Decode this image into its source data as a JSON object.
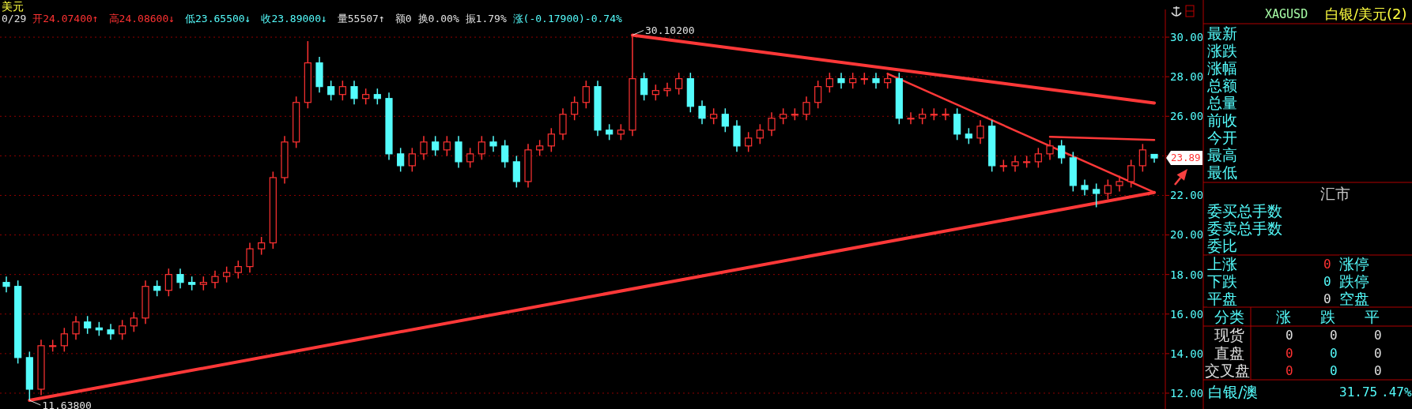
{
  "chart_data": [
    {
      "type": "candlestick",
      "title": "美元",
      "categories": [
        null,
        null,
        null,
        null,
        null,
        null,
        null,
        null,
        null,
        null,
        null,
        null,
        null,
        null,
        null,
        null,
        null,
        null,
        null,
        null,
        null,
        null,
        null,
        null,
        null,
        null,
        null,
        null,
        null,
        null,
        null,
        null,
        null,
        null,
        null,
        null,
        null,
        null,
        null,
        null,
        null,
        null,
        null,
        null,
        null,
        null,
        null,
        null,
        null,
        null,
        null,
        null,
        null,
        null,
        null,
        null,
        null,
        null,
        null,
        null,
        null,
        null,
        null,
        null,
        null,
        null,
        null,
        null,
        null,
        null,
        null,
        null,
        null,
        null,
        null,
        null,
        null,
        null,
        null,
        null,
        null,
        null,
        null,
        null,
        null,
        null,
        null,
        null,
        null,
        null,
        null,
        null,
        null,
        null,
        null,
        null,
        null,
        null,
        null,
        null
      ],
      "ohlc": [
        [
          17.6,
          17.9,
          17.1,
          17.4
        ],
        [
          17.4,
          17.7,
          13.5,
          13.8
        ],
        [
          13.8,
          14.1,
          11.638,
          12.2
        ],
        [
          12.2,
          14.7,
          11.9,
          14.4
        ],
        [
          14.4,
          14.7,
          14.1,
          14.4
        ],
        [
          14.4,
          15.3,
          14.1,
          15.0
        ],
        [
          15.0,
          15.9,
          14.7,
          15.6
        ],
        [
          15.6,
          15.9,
          15.0,
          15.3
        ],
        [
          15.3,
          15.6,
          14.9,
          15.2
        ],
        [
          15.2,
          15.5,
          14.7,
          15.0
        ],
        [
          15.0,
          15.7,
          14.7,
          15.4
        ],
        [
          15.4,
          16.1,
          15.1,
          15.8
        ],
        [
          15.8,
          17.7,
          15.5,
          17.4
        ],
        [
          17.4,
          17.7,
          16.9,
          17.2
        ],
        [
          17.2,
          18.3,
          16.9,
          18.0
        ],
        [
          18.0,
          18.3,
          17.3,
          17.6
        ],
        [
          17.6,
          17.9,
          17.2,
          17.5
        ],
        [
          17.5,
          17.9,
          17.2,
          17.6
        ],
        [
          17.6,
          18.2,
          17.3,
          17.9
        ],
        [
          17.9,
          18.4,
          17.6,
          18.1
        ],
        [
          18.1,
          18.7,
          17.8,
          18.4
        ],
        [
          18.4,
          19.6,
          18.1,
          19.3
        ],
        [
          19.3,
          19.9,
          19.0,
          19.6
        ],
        [
          19.6,
          23.2,
          19.3,
          22.9
        ],
        [
          22.9,
          25.0,
          22.6,
          24.7
        ],
        [
          24.7,
          27.0,
          24.4,
          26.7
        ],
        [
          26.7,
          29.8,
          26.4,
          28.7
        ],
        [
          28.7,
          29.0,
          27.2,
          27.5
        ],
        [
          27.5,
          27.8,
          26.8,
          27.1
        ],
        [
          27.1,
          27.8,
          26.8,
          27.5
        ],
        [
          27.5,
          27.8,
          26.6,
          26.9
        ],
        [
          26.9,
          27.4,
          26.6,
          27.1
        ],
        [
          27.1,
          27.4,
          26.6,
          26.9
        ],
        [
          26.9,
          27.2,
          23.8,
          24.1
        ],
        [
          24.1,
          24.4,
          23.2,
          23.5
        ],
        [
          23.5,
          24.4,
          23.2,
          24.1
        ],
        [
          24.1,
          25.0,
          23.8,
          24.7
        ],
        [
          24.7,
          25.0,
          24.0,
          24.3
        ],
        [
          24.3,
          25.0,
          24.0,
          24.7
        ],
        [
          24.7,
          25.0,
          23.4,
          23.7
        ],
        [
          23.7,
          24.4,
          23.4,
          24.1
        ],
        [
          24.1,
          25.0,
          23.8,
          24.7
        ],
        [
          24.7,
          25.0,
          24.2,
          24.5
        ],
        [
          24.5,
          24.8,
          23.4,
          23.7
        ],
        [
          23.7,
          24.0,
          22.4,
          22.7
        ],
        [
          22.7,
          24.6,
          22.4,
          24.3
        ],
        [
          24.3,
          24.8,
          24.0,
          24.5
        ],
        [
          24.5,
          25.4,
          24.2,
          25.1
        ],
        [
          25.1,
          26.4,
          24.8,
          26.1
        ],
        [
          26.1,
          27.0,
          25.8,
          26.7
        ],
        [
          26.7,
          27.8,
          26.4,
          27.5
        ],
        [
          27.5,
          27.8,
          25.0,
          25.3
        ],
        [
          25.3,
          25.6,
          24.8,
          25.1
        ],
        [
          25.1,
          25.6,
          24.8,
          25.3
        ],
        [
          25.3,
          30.102,
          25.0,
          27.9
        ],
        [
          27.9,
          28.2,
          26.8,
          27.1
        ],
        [
          27.1,
          27.6,
          26.8,
          27.3
        ],
        [
          27.3,
          27.7,
          27.0,
          27.4
        ],
        [
          27.4,
          28.2,
          27.1,
          27.9
        ],
        [
          27.9,
          28.2,
          26.2,
          26.5
        ],
        [
          26.5,
          26.8,
          25.6,
          25.9
        ],
        [
          25.9,
          26.4,
          25.6,
          26.1
        ],
        [
          26.1,
          26.4,
          25.2,
          25.5
        ],
        [
          25.5,
          25.8,
          24.2,
          24.5
        ],
        [
          24.5,
          25.2,
          24.2,
          24.9
        ],
        [
          24.9,
          25.6,
          24.6,
          25.3
        ],
        [
          25.3,
          26.2,
          25.0,
          25.9
        ],
        [
          25.9,
          26.4,
          25.6,
          26.1
        ],
        [
          26.1,
          26.4,
          25.8,
          26.1
        ],
        [
          26.1,
          27.0,
          25.8,
          26.7
        ],
        [
          26.7,
          27.8,
          26.4,
          27.5
        ],
        [
          27.5,
          28.2,
          27.2,
          27.9
        ],
        [
          27.9,
          28.2,
          27.4,
          27.7
        ],
        [
          27.7,
          28.2,
          27.4,
          27.9
        ],
        [
          27.9,
          28.2,
          27.6,
          27.9
        ],
        [
          27.9,
          28.2,
          27.4,
          27.7
        ],
        [
          27.7,
          28.2,
          27.4,
          27.9
        ],
        [
          27.9,
          28.2,
          25.6,
          25.9
        ],
        [
          25.9,
          26.2,
          25.6,
          25.9
        ],
        [
          25.9,
          26.4,
          25.6,
          26.1
        ],
        [
          26.1,
          26.4,
          25.8,
          26.1
        ],
        [
          26.1,
          26.4,
          25.8,
          26.1
        ],
        [
          26.1,
          26.4,
          24.8,
          25.1
        ],
        [
          25.1,
          25.4,
          24.6,
          24.9
        ],
        [
          24.9,
          25.8,
          24.6,
          25.5
        ],
        [
          25.5,
          25.8,
          23.2,
          23.5
        ],
        [
          23.5,
          23.8,
          23.2,
          23.5
        ],
        [
          23.5,
          24.0,
          23.2,
          23.7
        ],
        [
          23.7,
          24.0,
          23.4,
          23.7
        ],
        [
          23.7,
          24.4,
          23.4,
          24.1
        ],
        [
          24.1,
          24.8,
          23.8,
          24.5
        ],
        [
          24.5,
          24.8,
          23.6,
          23.9
        ],
        [
          23.9,
          24.2,
          22.2,
          22.5
        ],
        [
          22.5,
          22.8,
          22.0,
          22.3
        ],
        [
          22.3,
          22.6,
          21.4,
          22.1
        ],
        [
          22.1,
          22.8,
          21.8,
          22.5
        ],
        [
          22.5,
          23.0,
          22.2,
          22.7
        ],
        [
          22.7,
          23.8,
          22.4,
          23.5
        ],
        [
          23.5,
          24.6,
          23.2,
          24.3
        ],
        [
          24.074,
          24.086,
          23.655,
          23.89
        ]
      ],
      "colors": [
        "#54fcfc",
        "#54fcfc",
        "#54fcfc",
        "#ff3232",
        "#ff3232",
        "#ff3232",
        "#ff3232",
        "#54fcfc",
        "#54fcfc",
        "#54fcfc",
        "#ff3232",
        "#ff3232",
        "#ff3232",
        "#54fcfc",
        "#ff3232",
        "#54fcfc",
        "#54fcfc",
        "#ff3232",
        "#ff3232",
        "#ff3232",
        "#ff3232",
        "#ff3232",
        "#ff3232",
        "#ff3232",
        "#ff3232",
        "#ff3232",
        "#ff3232",
        "#54fcfc",
        "#54fcfc",
        "#ff3232",
        "#54fcfc",
        "#ff3232",
        "#54fcfc",
        "#54fcfc",
        "#54fcfc",
        "#ff3232",
        "#ff3232",
        "#54fcfc",
        "#ff3232",
        "#54fcfc",
        "#ff3232",
        "#ff3232",
        "#54fcfc",
        "#54fcfc",
        "#54fcfc",
        "#ff3232",
        "#ff3232",
        "#ff3232",
        "#ff3232",
        "#ff3232",
        "#ff3232",
        "#54fcfc",
        "#54fcfc",
        "#ff3232",
        "#ff3232",
        "#54fcfc",
        "#ff3232",
        "#ff3232",
        "#ff3232",
        "#54fcfc",
        "#54fcfc",
        "#ff3232",
        "#54fcfc",
        "#54fcfc",
        "#ff3232",
        "#ff3232",
        "#ff3232",
        "#ff3232",
        "#ff3232",
        "#ff3232",
        "#ff3232",
        "#ff3232",
        "#54fcfc",
        "#ff3232",
        "#ff3232",
        "#54fcfc",
        "#ff3232",
        "#54fcfc",
        "#ff3232",
        "#ff3232",
        "#ff3232",
        "#ff3232",
        "#54fcfc",
        "#54fcfc",
        "#ff3232",
        "#54fcfc",
        "#ff3232",
        "#ff3232",
        "#ff3232",
        "#ff3232",
        "#ff3232",
        "#54fcfc",
        "#54fcfc",
        "#54fcfc",
        "#54fcfc",
        "#ff3232",
        "#ff3232",
        "#ff3232",
        "#ff3232",
        "#54fcfc"
      ],
      "series": [
        {
          "type": "line",
          "color": "#ff3838",
          "values": [
            null,
            null,
            11.638,
            null,
            null,
            null,
            null,
            null,
            null,
            null,
            null,
            null,
            null,
            null,
            null,
            null,
            null,
            null,
            null,
            null,
            null,
            null,
            null,
            null,
            null,
            null,
            null,
            null,
            null,
            null,
            null,
            null,
            null,
            null,
            null,
            null,
            null,
            null,
            null,
            null,
            null,
            null,
            null,
            null,
            null,
            null,
            null,
            null,
            null,
            null,
            null,
            null,
            null,
            null,
            null,
            null,
            null,
            null,
            null,
            null,
            null,
            null,
            null,
            null,
            null,
            null,
            null,
            null,
            null,
            null,
            null,
            null,
            null,
            null,
            null,
            null,
            null,
            null,
            null,
            null,
            null,
            null,
            null,
            null,
            null,
            null,
            null,
            null,
            null,
            null,
            null,
            null,
            null,
            null,
            null,
            null,
            null,
            null,
            null,
            22.15
          ]
        },
        {
          "type": "line",
          "color": "#ff3838",
          "values": [
            null,
            null,
            null,
            null,
            null,
            null,
            null,
            null,
            null,
            null,
            null,
            null,
            null,
            null,
            null,
            null,
            null,
            null,
            null,
            null,
            null,
            null,
            null,
            null,
            null,
            null,
            null,
            null,
            null,
            null,
            null,
            null,
            null,
            null,
            null,
            null,
            null,
            null,
            null,
            null,
            null,
            null,
            null,
            null,
            null,
            null,
            null,
            null,
            null,
            null,
            null,
            null,
            null,
            null,
            30.102,
            null,
            null,
            null,
            null,
            null,
            null,
            null,
            null,
            null,
            null,
            null,
            null,
            null,
            null,
            null,
            null,
            null,
            null,
            null,
            null,
            null,
            null,
            null,
            null,
            null,
            null,
            null,
            null,
            null,
            null,
            null,
            null,
            null,
            null,
            null,
            null,
            null,
            null,
            null,
            null,
            null,
            null,
            null,
            null,
            26.67
          ]
        },
        {
          "type": "line",
          "color": "#ff3838",
          "values": [
            null,
            null,
            null,
            null,
            null,
            null,
            null,
            null,
            null,
            null,
            null,
            null,
            null,
            null,
            null,
            null,
            null,
            null,
            null,
            null,
            null,
            null,
            null,
            null,
            null,
            null,
            null,
            null,
            null,
            null,
            null,
            null,
            null,
            null,
            null,
            null,
            null,
            null,
            null,
            null,
            null,
            null,
            null,
            null,
            null,
            null,
            null,
            null,
            null,
            null,
            null,
            null,
            null,
            null,
            null,
            null,
            null,
            null,
            null,
            null,
            null,
            null,
            null,
            null,
            null,
            null,
            null,
            null,
            null,
            null,
            null,
            null,
            null,
            null,
            null,
            null,
            28.15,
            null,
            null,
            null,
            null,
            null,
            null,
            null,
            null,
            null,
            null,
            null,
            null,
            null,
            null,
            null,
            null,
            null,
            null,
            null,
            null,
            null,
            null,
            22.15
          ]
        },
        {
          "type": "line",
          "color": "#ff3838",
          "values": [
            null,
            null,
            null,
            null,
            null,
            null,
            null,
            null,
            null,
            null,
            null,
            null,
            null,
            null,
            null,
            null,
            null,
            null,
            null,
            null,
            null,
            null,
            null,
            null,
            null,
            null,
            null,
            null,
            null,
            null,
            null,
            null,
            null,
            null,
            null,
            null,
            null,
            null,
            null,
            null,
            null,
            null,
            null,
            null,
            null,
            null,
            null,
            null,
            null,
            null,
            null,
            null,
            null,
            null,
            null,
            null,
            null,
            null,
            null,
            null,
            null,
            null,
            null,
            null,
            null,
            null,
            null,
            null,
            null,
            null,
            null,
            null,
            null,
            null,
            null,
            null,
            null,
            null,
            null,
            null,
            null,
            null,
            null,
            null,
            null,
            null,
            null,
            null,
            null,
            null,
            24.96,
            null,
            null,
            null,
            null,
            null,
            null,
            null,
            null,
            24.8
          ]
        }
      ],
      "ylim": [
        11.2,
        31.4
      ],
      "yticks": [
        {
          "value": 12,
          "label": "12.00"
        },
        {
          "value": 14,
          "label": "14.00"
        },
        {
          "value": 16,
          "label": "16.00"
        },
        {
          "value": 18,
          "label": "18.00"
        },
        {
          "value": 20,
          "label": "20.00"
        },
        {
          "value": 22,
          "label": "22.00"
        },
        {
          "value": 24,
          "label": null
        },
        {
          "value": 26,
          "label": "26.00"
        },
        {
          "value": 28,
          "label": "28.00"
        },
        {
          "value": 30,
          "label": "30.00"
        }
      ],
      "grid": "y",
      "tick_labels": "y",
      "annotations": [
        "0/29",
        "开24.07400↑",
        "高24.08600↓",
        "低23.65500↓",
        "收23.89000↓",
        "量55507↑",
        "额0",
        "换0.00%",
        "振1.79%",
        "涨(-0.17900)-0.74%",
        "30.10200",
        "11.63800",
        "23.89"
      ]
    },
    {
      "type": "other",
      "annotations": [
        "XAGUSD",
        "白银/美元(2)",
        "最新",
        "涨跌",
        "涨幅",
        "总额",
        "总量",
        "前收",
        "今开",
        "最高",
        "最低",
        "汇市",
        "委买总手数",
        "委卖总手数",
        "委比",
        "上涨",
        "0",
        "涨停",
        "下跌",
        "0",
        "跌停",
        "平盘",
        "0",
        "空盘",
        "分类",
        "涨",
        "跌",
        "平",
        "现货",
        "0",
        "0",
        "0",
        "直盘",
        "0",
        "0",
        "0",
        "交叉盘",
        "0",
        "0",
        "0",
        "白银/澳",
        "31.75",
        ".47%"
      ]
    }
  ]
}
